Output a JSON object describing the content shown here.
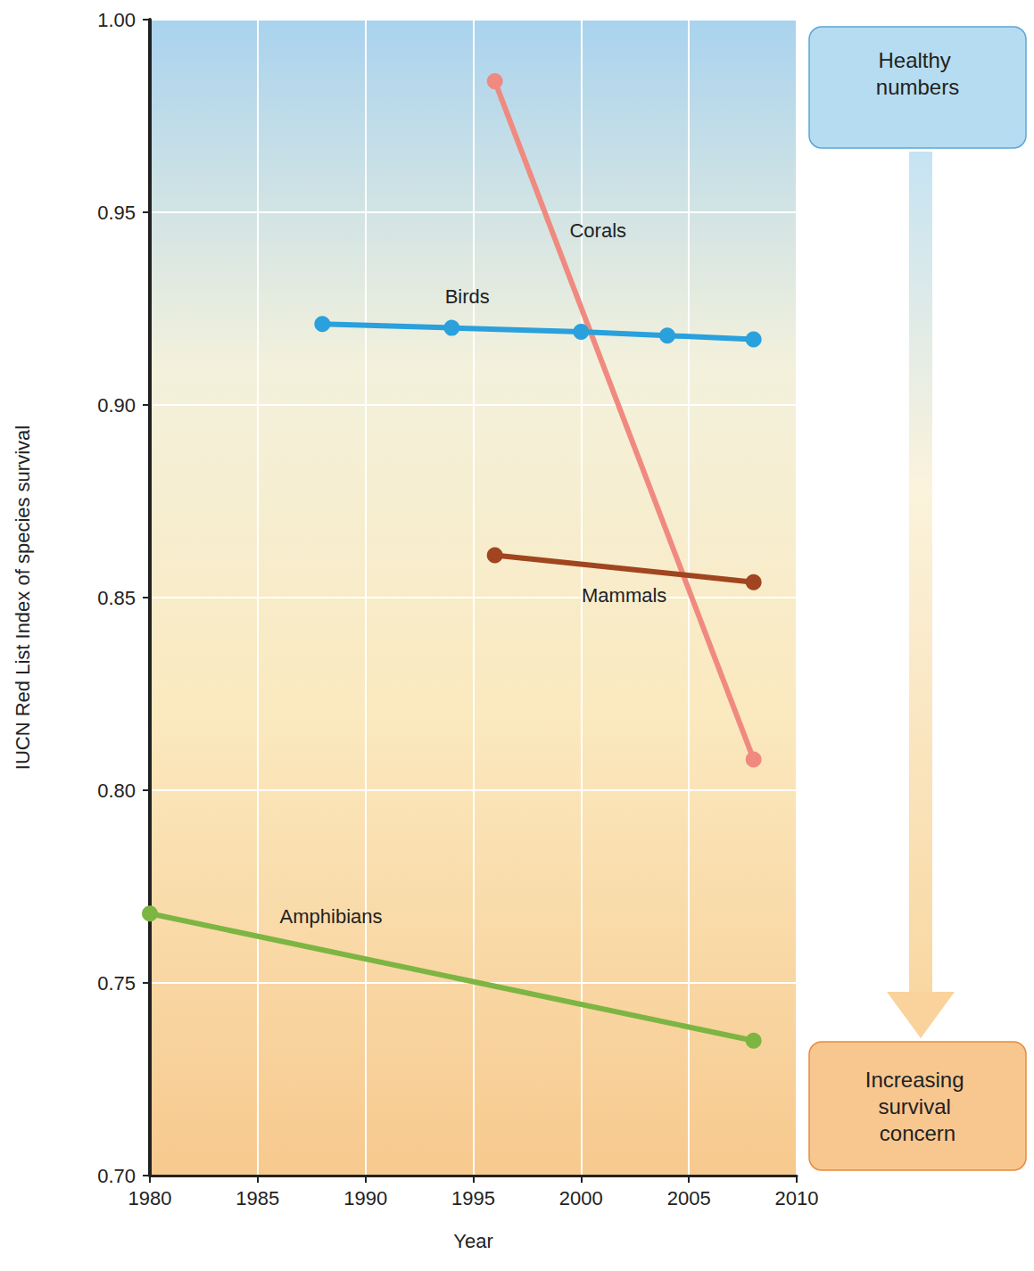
{
  "chart_data": {
    "type": "line",
    "x_label": "Year",
    "y_label": "IUCN Red List Index of species survival",
    "xlim": [
      1980,
      2010
    ],
    "xticks": [
      1980,
      1985,
      1990,
      1995,
      2000,
      2005,
      2010
    ],
    "ylim": [
      0.7,
      1.0
    ],
    "yticks": [
      {
        "value": 0.7,
        "label": "0.70"
      },
      {
        "value": 0.75,
        "label": "0.75"
      },
      {
        "value": 0.8,
        "label": "0.80"
      },
      {
        "value": 0.85,
        "label": "0.85"
      },
      {
        "value": 0.9,
        "label": "0.90"
      },
      {
        "value": 0.95,
        "label": "0.95"
      },
      {
        "value": 1.0,
        "label": "1.00"
      }
    ],
    "grid": true,
    "marker": "circle",
    "series": [
      {
        "name": "Corals",
        "color": "#f08a80",
        "x": [
          1996,
          2008
        ],
        "values": [
          0.984,
          0.808
        ]
      },
      {
        "name": "Birds",
        "color": "#2aa0dc",
        "x": [
          1988,
          1994,
          2000,
          2004,
          2008
        ],
        "values": [
          0.921,
          0.92,
          0.919,
          0.918,
          0.917
        ]
      },
      {
        "name": "Mammals",
        "color": "#a0451f",
        "x": [
          1996,
          2008
        ],
        "values": [
          0.861,
          0.854
        ]
      },
      {
        "name": "Amphibians",
        "color": "#7db543",
        "x": [
          1980,
          2008
        ],
        "values": [
          0.768,
          0.735
        ]
      }
    ],
    "annotations": [
      "Healthy numbers",
      "Increasing survival concern"
    ]
  }
}
